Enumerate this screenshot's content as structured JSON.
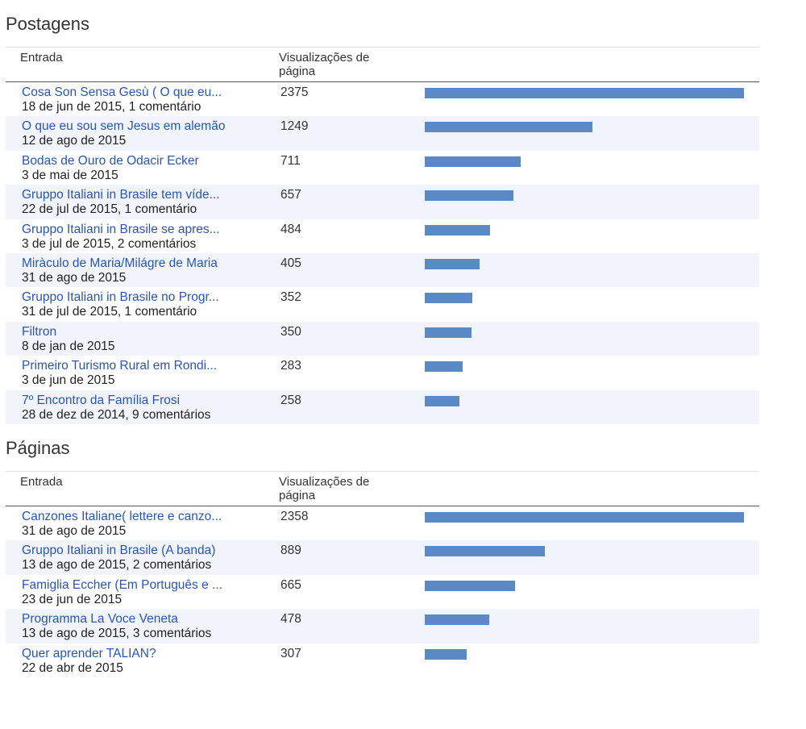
{
  "sections": [
    {
      "title": "Postagens",
      "header": {
        "entry": "Entrada",
        "views": "Visualizações de página"
      },
      "rows": [
        {
          "title": "Cosa Son Sensa Gesù ( O que eu...",
          "meta": "18 de jun de 2015, 1 comentário",
          "views": "2375",
          "value": 2375
        },
        {
          "title": "O que eu sou sem Jesus em alemão",
          "meta": "12 de ago de 2015",
          "views": "1249",
          "value": 1249
        },
        {
          "title": "Bodas de Ouro de Odacir Ecker",
          "meta": "3 de mai de 2015",
          "views": "711",
          "value": 711
        },
        {
          "title": "Gruppo Italiani in Brasile tem víde...",
          "meta": "22 de jul de 2015, 1 comentário",
          "views": "657",
          "value": 657
        },
        {
          "title": "Gruppo Italiani in Brasile se apres...",
          "meta": "3 de jul de 2015, 2 comentários",
          "views": "484",
          "value": 484
        },
        {
          "title": "Miràculo de Maria/Milágre de Maria",
          "meta": "31 de ago de 2015",
          "views": "405",
          "value": 405
        },
        {
          "title": "Gruppo Italiani in Brasile no Progr...",
          "meta": "31 de jul de 2015, 1 comentário",
          "views": "352",
          "value": 352
        },
        {
          "title": "Filtron",
          "meta": "8 de jan de 2015",
          "views": "350",
          "value": 350
        },
        {
          "title": "Primeiro Turismo Rural em Rondi...",
          "meta": "3 de jun de 2015",
          "views": "283",
          "value": 283
        },
        {
          "title": "7º Encontro da Família Frosi",
          "meta": "28 de dez de 2014, 9 comentários",
          "views": "258",
          "value": 258
        }
      ]
    },
    {
      "title": "Páginas",
      "header": {
        "entry": "Entrada",
        "views": "Visualizações de página"
      },
      "rows": [
        {
          "title": "Canzones Italiane( lettere e canzo...",
          "meta": "31 de ago de 2015",
          "views": "2358",
          "value": 2358
        },
        {
          "title": "Gruppo Italiani in Brasile (A banda)",
          "meta": "13 de ago de 2015, 2 comentários",
          "views": "889",
          "value": 889
        },
        {
          "title": "Famiglia Eccher (Em Português e ...",
          "meta": "23 de jun de 2015",
          "views": "665",
          "value": 665
        },
        {
          "title": "Programma La Voce Veneta",
          "meta": "13 de ago de 2015, 3 comentários",
          "views": "478",
          "value": 478
        },
        {
          "title": "Quer aprender TALIAN?",
          "meta": "22 de abr de 2015",
          "views": "307",
          "value": 307
        }
      ]
    }
  ],
  "colors": {
    "bar": "#5a8ac6",
    "link": "#2a55b8",
    "alt_row": "#f1f5fb"
  }
}
